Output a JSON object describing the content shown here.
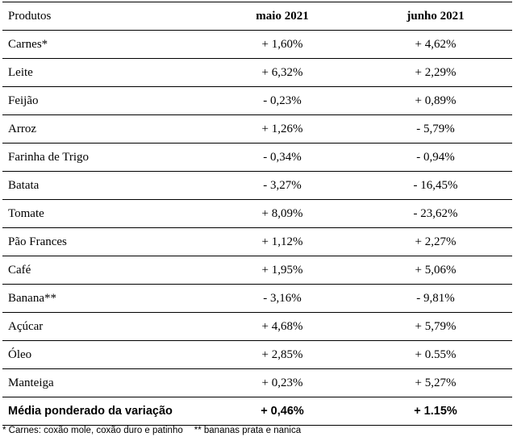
{
  "table": {
    "headers": {
      "product": "Produtos",
      "may": "maio 2021",
      "june": "junho 2021"
    },
    "rows": [
      {
        "product": "Carnes*",
        "may": "+ 1,60%",
        "june": "+ 4,62%"
      },
      {
        "product": "Leite",
        "may": "+ 6,32%",
        "june": "+ 2,29%"
      },
      {
        "product": "Feijão",
        "may": "- 0,23%",
        "june": "+ 0,89%"
      },
      {
        "product": "Arroz",
        "may": "+ 1,26%",
        "june": "- 5,79%"
      },
      {
        "product": "Farinha de Trigo",
        "may": "- 0,34%",
        "june": "- 0,94%"
      },
      {
        "product": "Batata",
        "may": "- 3,27%",
        "june": "- 16,45%"
      },
      {
        "product": "Tomate",
        "may": "+ 8,09%",
        "june": "- 23,62%"
      },
      {
        "product": "Pão Frances",
        "may": "+ 1,12%",
        "june": "+ 2,27%"
      },
      {
        "product": "Café",
        "may": "+ 1,95%",
        "june": "+ 5,06%"
      },
      {
        "product": "Banana**",
        "may": "- 3,16%",
        "june": "- 9,81%"
      },
      {
        "product": "Açúcar",
        "may": "+ 4,68%",
        "june": "+ 5,79%"
      },
      {
        "product": "Óleo",
        "may": "+ 2,85%",
        "june": "+ 0.55%"
      },
      {
        "product": "Manteiga",
        "may": "+ 0,23%",
        "june": "+ 5,27%"
      }
    ],
    "total": {
      "product": "Média ponderado da variação",
      "may": "+ 0,46%",
      "june": "+ 1.15%"
    }
  },
  "footnotes": {
    "meat": "* Carnes: coxão mole, coxão duro e patinho",
    "banana": "** bananas prata e nanica"
  }
}
